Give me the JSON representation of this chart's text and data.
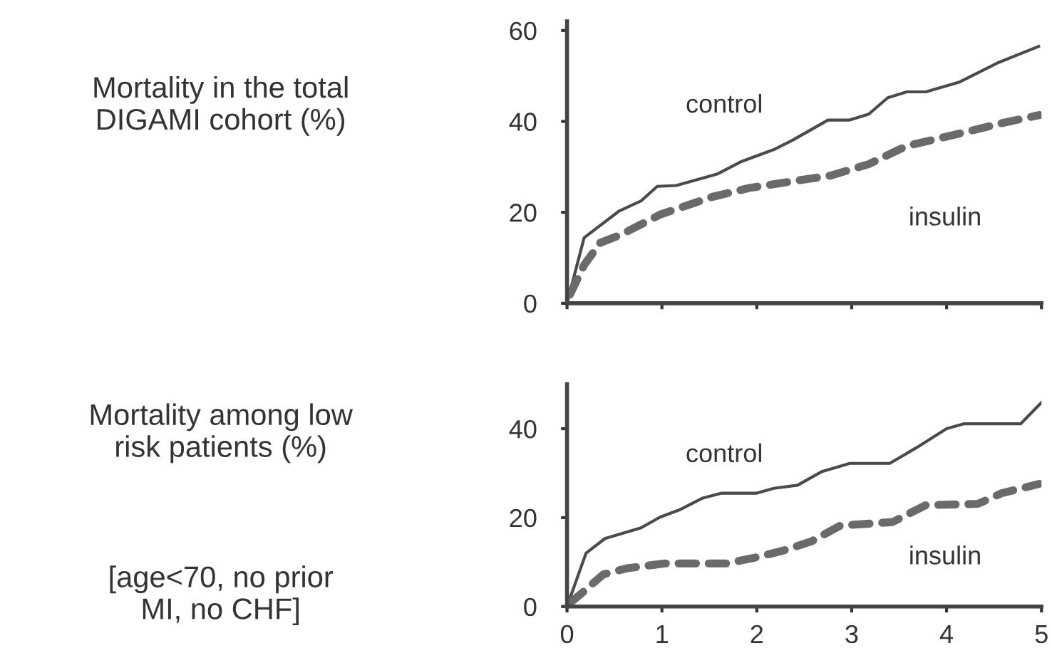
{
  "chart_data": [
    {
      "type": "line",
      "ylabel": "Mortality in the total\nDIGAMI cohort (%)",
      "xlim": [
        0,
        5
      ],
      "ylim": [
        0,
        62
      ],
      "xticks": [
        0,
        1,
        2,
        3,
        4,
        5
      ],
      "yticks": [
        0,
        20,
        40,
        60
      ],
      "tick_labels": "y",
      "grid": false,
      "legend": false,
      "series": [
        {
          "name": "control",
          "color": "#4a4a4a",
          "line_style": "solid",
          "x": [
            0,
            0.18,
            0.55,
            0.78,
            0.95,
            1.15,
            1.58,
            1.83,
            2.18,
            2.38,
            2.75,
            2.98,
            3.18,
            3.38,
            3.58,
            3.78,
            4.13,
            4.53,
            4.97
          ],
          "values": [
            0,
            14.4,
            20.3,
            22.5,
            25.7,
            25.9,
            28.4,
            31.1,
            33.8,
            35.9,
            40.3,
            40.3,
            41.6,
            45.2,
            46.5,
            46.5,
            48.6,
            52.8,
            56.5
          ]
        },
        {
          "name": "insulin",
          "color": "#6a6a6a",
          "line_style": "dashed",
          "x": [
            0.03,
            0.18,
            0.35,
            0.58,
            0.98,
            1.53,
            1.93,
            2.78,
            3.18,
            3.58,
            4.03,
            4.58,
            4.98
          ],
          "values": [
            1.9,
            8.4,
            13.3,
            15.2,
            19.5,
            23.4,
            25.4,
            28.1,
            30.6,
            34.6,
            36.8,
            39.6,
            41.4
          ]
        }
      ]
    },
    {
      "type": "line",
      "ylabel": "Mortality among low\nrisk patients (%)",
      "annotations": [
        "[age<70, no prior\nMI, no CHF]"
      ],
      "xlim": [
        0,
        5
      ],
      "ylim": [
        0,
        50
      ],
      "xticks": [
        0,
        1,
        2,
        3,
        4,
        5
      ],
      "yticks": [
        0,
        20,
        40
      ],
      "grid": false,
      "legend": false,
      "series": [
        {
          "name": "control",
          "color": "#4a4a4a",
          "line_style": "solid",
          "x": [
            0,
            0.2,
            0.4,
            0.78,
            0.98,
            1.18,
            1.43,
            1.63,
            2.0,
            2.18,
            2.43,
            2.68,
            2.98,
            3.4,
            3.68,
            4.0,
            4.18,
            4.78,
            5.0
          ],
          "values": [
            0,
            12.0,
            15.3,
            17.7,
            20.1,
            21.7,
            24.4,
            25.5,
            25.5,
            26.6,
            27.3,
            30.3,
            32.2,
            32.2,
            35.7,
            40.0,
            41.1,
            41.1,
            45.9
          ]
        },
        {
          "name": "insulin",
          "color": "#6a6a6a",
          "line_style": "dashed",
          "x": [
            0.03,
            0.15,
            0.38,
            0.63,
            1.03,
            1.68,
            1.98,
            2.28,
            2.58,
            2.88,
            3.43,
            3.78,
            4.33,
            4.58,
            4.98
          ],
          "values": [
            0.8,
            2.9,
            7.2,
            8.6,
            9.7,
            9.7,
            11.0,
            12.6,
            14.7,
            18.2,
            19.0,
            22.8,
            23.1,
            25.5,
            27.6
          ]
        }
      ]
    }
  ]
}
